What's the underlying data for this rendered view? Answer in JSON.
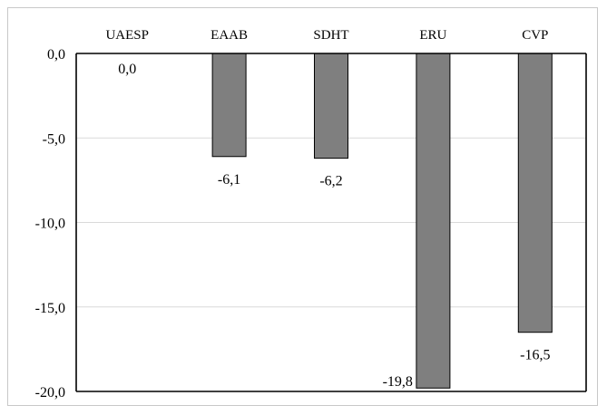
{
  "chart_data": {
    "type": "bar",
    "categories": [
      "UAESP",
      "EAAB",
      "SDHT",
      "ERU",
      "CVP"
    ],
    "values": [
      0.0,
      -6.1,
      -6.2,
      -19.8,
      -16.5
    ],
    "value_labels": [
      "0,0",
      "-6,1",
      "-6,2",
      "-19,8",
      "-16,5"
    ],
    "title": "",
    "xlabel": "",
    "ylabel": "",
    "ylim": [
      -20,
      0
    ],
    "yticks": [
      0,
      -5,
      -10,
      -15,
      -20
    ],
    "ytick_labels": [
      "0,0",
      "-5,0",
      "-10,0",
      "-15,0",
      "-20,0"
    ],
    "grid": true,
    "x_axis_position": "top",
    "colors": {
      "bar": "#7f7f7f",
      "bar_edge": "#000000",
      "grid": "#d9d9d9",
      "axis": "#000000"
    }
  }
}
